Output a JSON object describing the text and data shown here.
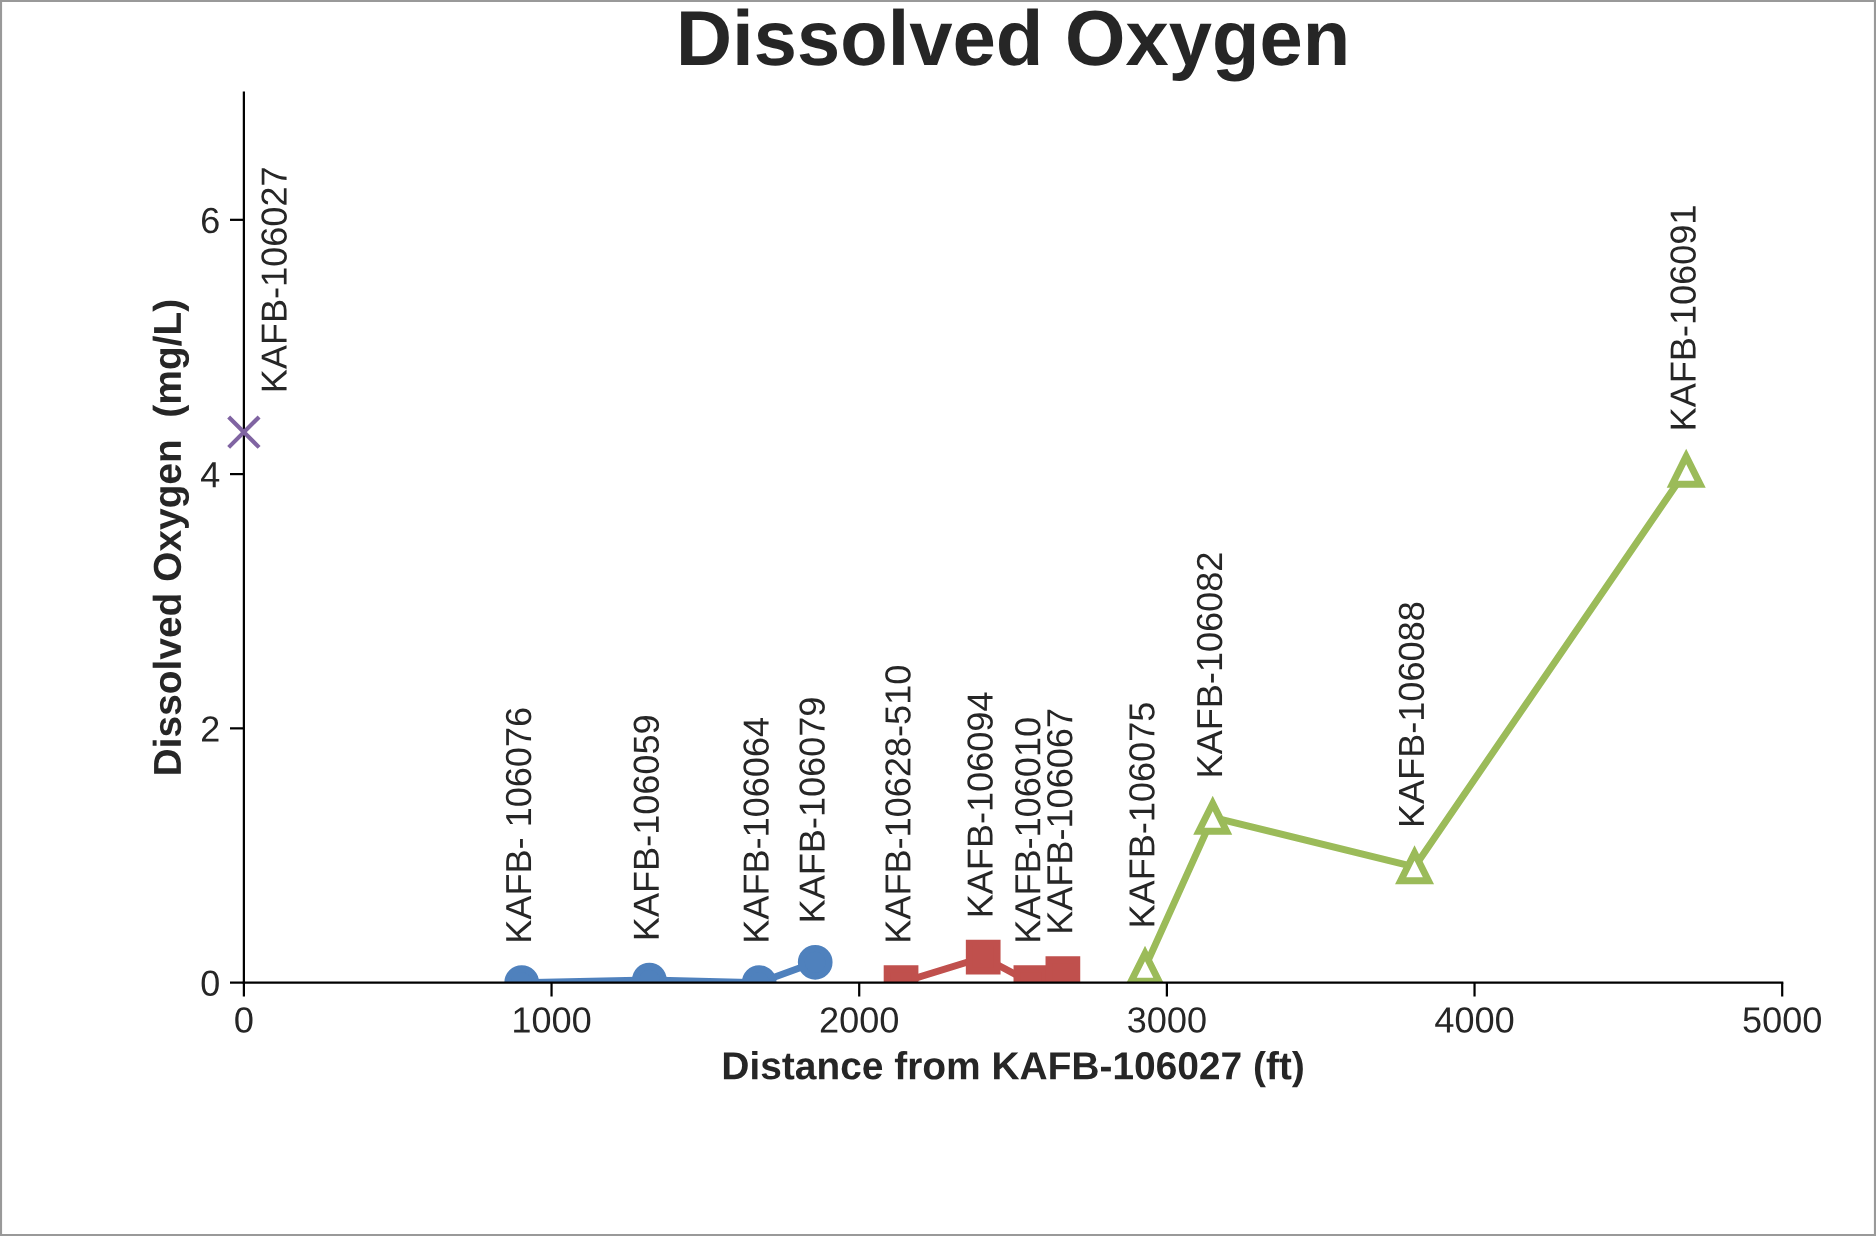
{
  "chart_data": {
    "type": "line",
    "title": "Dissolved Oxygen",
    "xlabel": "Distance from KAFB-106027 (ft)",
    "ylabel": "Dissolved Oxygen  (mg/L)",
    "xlim": [
      0,
      5000
    ],
    "xticks": [
      0,
      1000,
      2000,
      3000,
      4000,
      5000
    ],
    "ylim": [
      0,
      7
    ],
    "yticks": [
      0,
      2,
      4,
      6
    ],
    "grid": false,
    "legend": false,
    "series": [
      {
        "type": "scatter",
        "color": "#8064a2",
        "marker": "cross",
        "x": [
          0
        ],
        "values": [
          4.33
        ]
      },
      {
        "color": "#4f81bd",
        "marker": "circle",
        "x": [
          903,
          1318,
          1675,
          1857
        ],
        "values": [
          0,
          0.02,
          0,
          0.16
        ]
      },
      {
        "color": "#c0504d",
        "marker": "square",
        "x": [
          2136,
          2403,
          2558,
          2662
        ],
        "values": [
          0,
          0.2,
          0,
          0.07
        ]
      },
      {
        "color": "#9bbb59",
        "marker": "triangle",
        "x": [
          2929,
          3149,
          3805,
          4688
        ],
        "values": [
          0.12,
          1.3,
          0.91,
          4.03
        ]
      }
    ],
    "annotations": [
      {
        "text": "KAFB-106027",
        "x": 0,
        "y": 4.33
      },
      {
        "text": "KAFB- 106076",
        "x": 903,
        "y": 0
      },
      {
        "text": "KAFB-106059",
        "x": 1318,
        "y": 0.02
      },
      {
        "text": "KAFB-106064",
        "x": 1675,
        "y": 0
      },
      {
        "text": "KAFB-106079",
        "x": 1857,
        "y": 0.16
      },
      {
        "text": "KAFB-10628-510",
        "x": 2136,
        "y": 0
      },
      {
        "text": "KAFB-106094",
        "x": 2403,
        "y": 0.2
      },
      {
        "text": "KAFB-106010",
        "x": 2558,
        "y": 0
      },
      {
        "text": "KAFB-106067",
        "x": 2662,
        "y": 0.07
      },
      {
        "text": "KAFB-106075",
        "x": 2929,
        "y": 0.12
      },
      {
        "text": "KAFB-106082",
        "x": 3149,
        "y": 1.3
      },
      {
        "text": "KAFB-106088",
        "x": 3805,
        "y": 0.91
      },
      {
        "text": "KAFB-106091",
        "x": 4688,
        "y": 4.03
      }
    ]
  }
}
